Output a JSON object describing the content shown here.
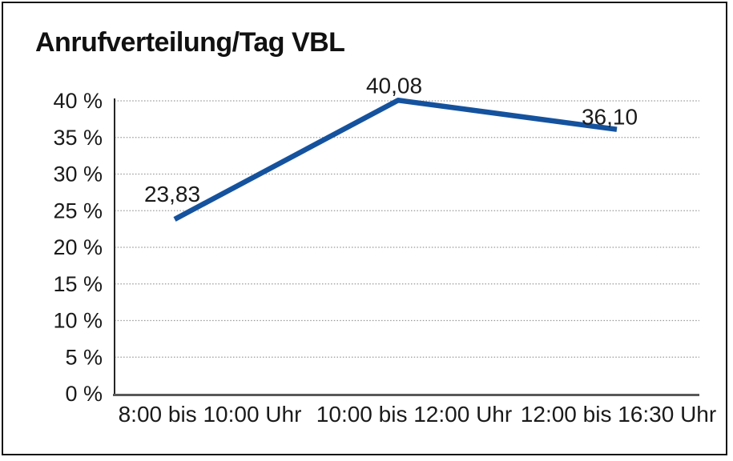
{
  "chart": {
    "title": "Anrufverteilung/Tag VBL"
  },
  "chart_data": {
    "type": "line",
    "title": "Anrufverteilung/Tag VBL",
    "categories": [
      "8:00 bis 10:00 Uhr",
      "10:00 bis 12:00 Uhr",
      "12:00 bis 16:30 Uhr"
    ],
    "series": [
      {
        "name": "Anrufverteilung/Tag VBL",
        "values": [
          23.83,
          40.08,
          36.1
        ]
      }
    ],
    "point_labels": [
      "23,83",
      "40,08",
      "36,10"
    ],
    "ylabel": "",
    "xlabel": "",
    "ylim": [
      0,
      40
    ],
    "ytick_step": 5,
    "ytick_labels": [
      "0 %",
      "5 %",
      "10 %",
      "15 %",
      "20 %",
      "25 %",
      "30 %",
      "35 %",
      "40 %"
    ],
    "grid": "horizontal-dotted",
    "legend_position": "none",
    "colors": {
      "line": "#15529e",
      "gridline": "#999999",
      "y_axis": "#262626",
      "x_axis": "#595959",
      "text": "#1a1a1a",
      "frame_border": "#141414",
      "background": "#ffffff"
    }
  }
}
